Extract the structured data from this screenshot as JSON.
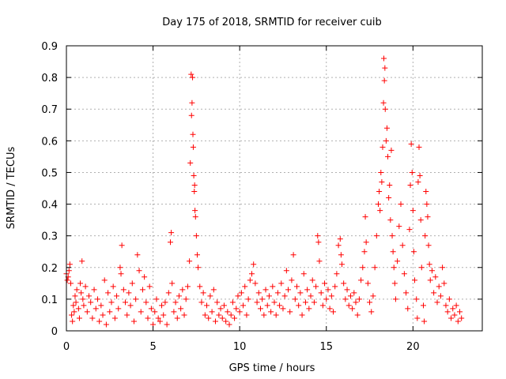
{
  "chart_data": {
    "type": "scatter",
    "title": "Day 175 of 2018, SRMTID for receiver cuib",
    "xlabel": "GPS time / hours",
    "ylabel": "SRMTID / TECUs",
    "xlim": [
      0,
      24
    ],
    "ylim": [
      0,
      0.9
    ],
    "xticks": [
      0,
      5,
      10,
      15,
      20
    ],
    "xtick_labels": [
      "0",
      "5",
      "10",
      "15",
      "20"
    ],
    "yticks": [
      0,
      0.1,
      0.2,
      0.3,
      0.4,
      0.5,
      0.6,
      0.7,
      0.8,
      0.9
    ],
    "ytick_labels": [
      "0",
      "0.1",
      "0.2",
      "0.3",
      "0.4",
      "0.5",
      "0.6",
      "0.7",
      "0.8",
      "0.9"
    ],
    "grid": true,
    "marker": "plus",
    "series": [
      {
        "name": "SRMTID",
        "color": "#ff0000",
        "points": [
          [
            0.0,
            0.18
          ],
          [
            0.05,
            0.16
          ],
          [
            0.1,
            0.17
          ],
          [
            0.15,
            0.19
          ],
          [
            0.2,
            0.21
          ],
          [
            0.25,
            0.15
          ],
          [
            0.3,
            0.05
          ],
          [
            0.35,
            0.03
          ],
          [
            0.4,
            0.08
          ],
          [
            0.45,
            0.06
          ],
          [
            0.5,
            0.11
          ],
          [
            0.55,
            0.09
          ],
          [
            0.6,
            0.13
          ],
          [
            0.7,
            0.07
          ],
          [
            0.75,
            0.04
          ],
          [
            0.8,
            0.15
          ],
          [
            0.85,
            0.12
          ],
          [
            0.9,
            0.22
          ],
          [
            0.95,
            0.1
          ],
          [
            1.0,
            0.08
          ],
          [
            1.1,
            0.14
          ],
          [
            1.2,
            0.06
          ],
          [
            1.3,
            0.11
          ],
          [
            1.4,
            0.09
          ],
          [
            1.5,
            0.04
          ],
          [
            1.6,
            0.13
          ],
          [
            1.7,
            0.07
          ],
          [
            1.8,
            0.1
          ],
          [
            1.9,
            0.03
          ],
          [
            2.0,
            0.08
          ],
          [
            2.1,
            0.05
          ],
          [
            2.2,
            0.16
          ],
          [
            2.3,
            0.02
          ],
          [
            2.4,
            0.12
          ],
          [
            2.5,
            0.06
          ],
          [
            2.6,
            0.09
          ],
          [
            2.7,
            0.14
          ],
          [
            2.8,
            0.04
          ],
          [
            2.9,
            0.11
          ],
          [
            3.0,
            0.07
          ],
          [
            3.1,
            0.2
          ],
          [
            3.15,
            0.18
          ],
          [
            3.2,
            0.27
          ],
          [
            3.3,
            0.13
          ],
          [
            3.4,
            0.09
          ],
          [
            3.5,
            0.05
          ],
          [
            3.6,
            0.12
          ],
          [
            3.7,
            0.08
          ],
          [
            3.8,
            0.15
          ],
          [
            3.9,
            0.03
          ],
          [
            4.0,
            0.1
          ],
          [
            4.1,
            0.24
          ],
          [
            4.2,
            0.19
          ],
          [
            4.3,
            0.06
          ],
          [
            4.4,
            0.13
          ],
          [
            4.5,
            0.17
          ],
          [
            4.6,
            0.09
          ],
          [
            4.7,
            0.04
          ],
          [
            4.8,
            0.14
          ],
          [
            4.9,
            0.07
          ],
          [
            5.0,
            0.02
          ],
          [
            5.1,
            0.06
          ],
          [
            5.2,
            0.1
          ],
          [
            5.3,
            0.04
          ],
          [
            5.4,
            0.03
          ],
          [
            5.5,
            0.08
          ],
          [
            5.6,
            0.05
          ],
          [
            5.7,
            0.09
          ],
          [
            5.8,
            0.02
          ],
          [
            5.9,
            0.12
          ],
          [
            6.0,
            0.28
          ],
          [
            6.05,
            0.31
          ],
          [
            6.1,
            0.15
          ],
          [
            6.2,
            0.06
          ],
          [
            6.3,
            0.09
          ],
          [
            6.4,
            0.04
          ],
          [
            6.5,
            0.11
          ],
          [
            6.6,
            0.07
          ],
          [
            6.7,
            0.13
          ],
          [
            6.8,
            0.05
          ],
          [
            6.9,
            0.1
          ],
          [
            7.0,
            0.14
          ],
          [
            7.1,
            0.22
          ],
          [
            7.15,
            0.53
          ],
          [
            7.2,
            0.81
          ],
          [
            7.22,
            0.68
          ],
          [
            7.25,
            0.72
          ],
          [
            7.28,
            0.8
          ],
          [
            7.3,
            0.62
          ],
          [
            7.32,
            0.58
          ],
          [
            7.35,
            0.49
          ],
          [
            7.38,
            0.44
          ],
          [
            7.4,
            0.46
          ],
          [
            7.42,
            0.38
          ],
          [
            7.45,
            0.36
          ],
          [
            7.5,
            0.3
          ],
          [
            7.55,
            0.24
          ],
          [
            7.6,
            0.2
          ],
          [
            7.7,
            0.14
          ],
          [
            7.8,
            0.09
          ],
          [
            7.9,
            0.12
          ],
          [
            8.0,
            0.05
          ],
          [
            8.1,
            0.08
          ],
          [
            8.2,
            0.04
          ],
          [
            8.3,
            0.11
          ],
          [
            8.4,
            0.06
          ],
          [
            8.5,
            0.13
          ],
          [
            8.6,
            0.03
          ],
          [
            8.7,
            0.09
          ],
          [
            8.8,
            0.05
          ],
          [
            8.9,
            0.07
          ],
          [
            9.0,
            0.04
          ],
          [
            9.1,
            0.08
          ],
          [
            9.2,
            0.03
          ],
          [
            9.3,
            0.06
          ],
          [
            9.4,
            0.02
          ],
          [
            9.5,
            0.05
          ],
          [
            9.6,
            0.09
          ],
          [
            9.7,
            0.04
          ],
          [
            9.8,
            0.07
          ],
          [
            9.9,
            0.11
          ],
          [
            10.0,
            0.06
          ],
          [
            10.1,
            0.12
          ],
          [
            10.2,
            0.08
          ],
          [
            10.3,
            0.14
          ],
          [
            10.4,
            0.05
          ],
          [
            10.5,
            0.1
          ],
          [
            10.6,
            0.16
          ],
          [
            10.7,
            0.18
          ],
          [
            10.8,
            0.21
          ],
          [
            10.9,
            0.15
          ],
          [
            11.0,
            0.09
          ],
          [
            11.1,
            0.12
          ],
          [
            11.2,
            0.07
          ],
          [
            11.3,
            0.1
          ],
          [
            11.4,
            0.05
          ],
          [
            11.5,
            0.13
          ],
          [
            11.6,
            0.08
          ],
          [
            11.7,
            0.11
          ],
          [
            11.8,
            0.06
          ],
          [
            11.9,
            0.14
          ],
          [
            12.0,
            0.09
          ],
          [
            12.1,
            0.05
          ],
          [
            12.2,
            0.12
          ],
          [
            12.3,
            0.08
          ],
          [
            12.4,
            0.15
          ],
          [
            12.5,
            0.07
          ],
          [
            12.6,
            0.11
          ],
          [
            12.7,
            0.19
          ],
          [
            12.8,
            0.13
          ],
          [
            12.9,
            0.06
          ],
          [
            13.0,
            0.16
          ],
          [
            13.1,
            0.24
          ],
          [
            13.2,
            0.1
          ],
          [
            13.3,
            0.14
          ],
          [
            13.4,
            0.08
          ],
          [
            13.5,
            0.12
          ],
          [
            13.6,
            0.05
          ],
          [
            13.7,
            0.18
          ],
          [
            13.8,
            0.09
          ],
          [
            13.9,
            0.13
          ],
          [
            14.0,
            0.07
          ],
          [
            14.1,
            0.11
          ],
          [
            14.2,
            0.16
          ],
          [
            14.3,
            0.09
          ],
          [
            14.4,
            0.14
          ],
          [
            14.5,
            0.3
          ],
          [
            14.55,
            0.28
          ],
          [
            14.6,
            0.22
          ],
          [
            14.7,
            0.12
          ],
          [
            14.8,
            0.08
          ],
          [
            14.9,
            0.15
          ],
          [
            15.0,
            0.1
          ],
          [
            15.1,
            0.13
          ],
          [
            15.2,
            0.07
          ],
          [
            15.3,
            0.11
          ],
          [
            15.4,
            0.06
          ],
          [
            15.5,
            0.14
          ],
          [
            15.6,
            0.18
          ],
          [
            15.7,
            0.27
          ],
          [
            15.8,
            0.29
          ],
          [
            15.85,
            0.24
          ],
          [
            15.9,
            0.21
          ],
          [
            16.0,
            0.15
          ],
          [
            16.1,
            0.1
          ],
          [
            16.2,
            0.13
          ],
          [
            16.3,
            0.08
          ],
          [
            16.4,
            0.11
          ],
          [
            16.5,
            0.07
          ],
          [
            16.6,
            0.12
          ],
          [
            16.7,
            0.09
          ],
          [
            16.8,
            0.05
          ],
          [
            16.9,
            0.1
          ],
          [
            17.0,
            0.16
          ],
          [
            17.1,
            0.2
          ],
          [
            17.2,
            0.25
          ],
          [
            17.25,
            0.36
          ],
          [
            17.3,
            0.28
          ],
          [
            17.4,
            0.15
          ],
          [
            17.5,
            0.09
          ],
          [
            17.6,
            0.06
          ],
          [
            17.7,
            0.11
          ],
          [
            17.8,
            0.2
          ],
          [
            17.9,
            0.3
          ],
          [
            18.0,
            0.4
          ],
          [
            18.05,
            0.44
          ],
          [
            18.1,
            0.38
          ],
          [
            18.15,
            0.5
          ],
          [
            18.2,
            0.47
          ],
          [
            18.25,
            0.58
          ],
          [
            18.3,
            0.72
          ],
          [
            18.32,
            0.86
          ],
          [
            18.35,
            0.79
          ],
          [
            18.38,
            0.83
          ],
          [
            18.4,
            0.7
          ],
          [
            18.45,
            0.6
          ],
          [
            18.5,
            0.64
          ],
          [
            18.55,
            0.55
          ],
          [
            18.6,
            0.42
          ],
          [
            18.65,
            0.46
          ],
          [
            18.7,
            0.35
          ],
          [
            18.75,
            0.57
          ],
          [
            18.8,
            0.3
          ],
          [
            18.85,
            0.25
          ],
          [
            18.9,
            0.2
          ],
          [
            18.95,
            0.15
          ],
          [
            19.0,
            0.1
          ],
          [
            19.1,
            0.22
          ],
          [
            19.2,
            0.33
          ],
          [
            19.3,
            0.4
          ],
          [
            19.4,
            0.27
          ],
          [
            19.5,
            0.18
          ],
          [
            19.6,
            0.12
          ],
          [
            19.7,
            0.07
          ],
          [
            19.8,
            0.32
          ],
          [
            19.85,
            0.46
          ],
          [
            19.9,
            0.59
          ],
          [
            19.95,
            0.5
          ],
          [
            20.0,
            0.38
          ],
          [
            20.05,
            0.25
          ],
          [
            20.1,
            0.16
          ],
          [
            20.2,
            0.1
          ],
          [
            20.25,
            0.04
          ],
          [
            20.3,
            0.47
          ],
          [
            20.35,
            0.58
          ],
          [
            20.4,
            0.49
          ],
          [
            20.45,
            0.35
          ],
          [
            20.5,
            0.2
          ],
          [
            20.6,
            0.08
          ],
          [
            20.65,
            0.03
          ],
          [
            20.7,
            0.3
          ],
          [
            20.75,
            0.44
          ],
          [
            20.8,
            0.4
          ],
          [
            20.85,
            0.36
          ],
          [
            20.9,
            0.27
          ],
          [
            20.95,
            0.21
          ],
          [
            21.0,
            0.16
          ],
          [
            21.1,
            0.19
          ],
          [
            21.2,
            0.12
          ],
          [
            21.3,
            0.17
          ],
          [
            21.4,
            0.09
          ],
          [
            21.5,
            0.14
          ],
          [
            21.6,
            0.11
          ],
          [
            21.7,
            0.2
          ],
          [
            21.8,
            0.15
          ],
          [
            21.9,
            0.08
          ],
          [
            22.0,
            0.06
          ],
          [
            22.1,
            0.1
          ],
          [
            22.2,
            0.04
          ],
          [
            22.3,
            0.07
          ],
          [
            22.4,
            0.05
          ],
          [
            22.5,
            0.08
          ],
          [
            22.6,
            0.03
          ],
          [
            22.7,
            0.06
          ],
          [
            22.8,
            0.04
          ]
        ]
      }
    ]
  }
}
